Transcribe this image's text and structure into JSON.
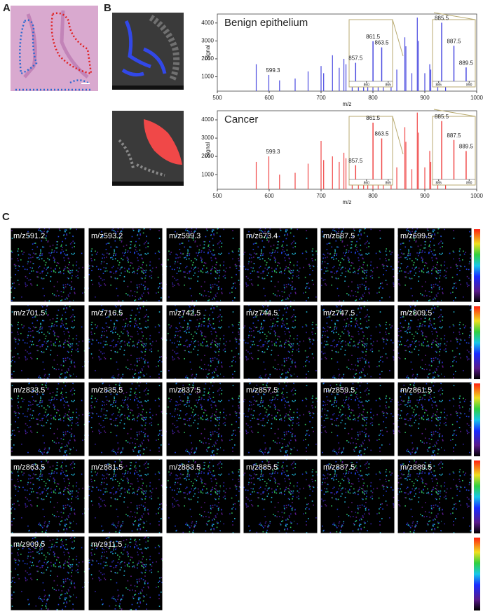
{
  "panel_labels": [
    "A",
    "B",
    "C"
  ],
  "spectra": [
    {
      "title": "Benign epithelium",
      "color": "#4a4ae0",
      "xlabel": "m/z",
      "ylabel": "Signal",
      "xlim": [
        500,
        1000
      ],
      "xticks": [
        500,
        600,
        700,
        800,
        900,
        1000
      ],
      "ylim": [
        200,
        4500
      ],
      "yticks": [
        1000,
        2000,
        3000,
        4000
      ],
      "x": [
        575,
        599.3,
        620,
        650,
        675,
        700,
        705,
        722,
        735,
        744,
        748,
        760,
        772,
        782,
        790,
        800,
        810,
        820,
        835,
        846,
        861.5,
        863.5,
        875,
        885.5,
        887.5,
        900,
        909.5,
        911.5,
        925,
        940
      ],
      "values": [
        1700,
        1100,
        800,
        900,
        1300,
        1600,
        1200,
        2200,
        1500,
        2000,
        1700,
        1500,
        1300,
        1200,
        1400,
        1100,
        1800,
        1300,
        2300,
        1400,
        3200,
        2700,
        1200,
        4300,
        3000,
        1200,
        1700,
        1400,
        800,
        700
      ],
      "peak_labels": [
        {
          "x": 599.3,
          "y": 1100
        }
      ],
      "insets": [
        {
          "xlim": [
            856,
            866
          ],
          "xticks": [
            860,
            865
          ],
          "ylim": [
            0,
            4000
          ],
          "peaks": [
            {
              "x": 857.5,
              "y": 1200
            },
            {
              "x": 861.5,
              "y": 2600
            },
            {
              "x": 863.5,
              "y": 2200
            }
          ]
        },
        {
          "xlim": [
            884,
            891
          ],
          "xticks": [
            885,
            890
          ],
          "ylim": [
            0,
            4000
          ],
          "peaks": [
            {
              "x": 885.5,
              "y": 3800
            },
            {
              "x": 887.5,
              "y": 2300
            },
            {
              "x": 889.5,
              "y": 900
            }
          ]
        }
      ]
    },
    {
      "title": "Cancer",
      "color": "#f04848",
      "xlabel": "m/z",
      "ylabel": "Signal",
      "xlim": [
        500,
        1000
      ],
      "xticks": [
        500,
        600,
        700,
        800,
        900,
        1000
      ],
      "ylim": [
        200,
        4500
      ],
      "yticks": [
        1000,
        2000,
        3000,
        4000
      ],
      "x": [
        575,
        599.3,
        620,
        650,
        675,
        700,
        705,
        722,
        735,
        744,
        748,
        760,
        772,
        782,
        790,
        800,
        810,
        820,
        835,
        846,
        861.5,
        863.5,
        875,
        885.5,
        887.5,
        900,
        909.5,
        911.5,
        925,
        940
      ],
      "values": [
        1700,
        2000,
        1000,
        1100,
        1600,
        2850,
        1800,
        2000,
        1700,
        2200,
        1900,
        1500,
        1300,
        1400,
        1200,
        1100,
        1600,
        1200,
        2400,
        1400,
        3600,
        2800,
        1300,
        4400,
        3300,
        1400,
        2300,
        1700,
        900,
        800
      ],
      "peak_labels": [
        {
          "x": 599.3,
          "y": 2000
        }
      ],
      "insets": [
        {
          "xlim": [
            856,
            866
          ],
          "xticks": [
            860,
            865
          ],
          "ylim": [
            0,
            4000
          ],
          "peaks": [
            {
              "x": 857.5,
              "y": 900
            },
            {
              "x": 861.5,
              "y": 3600
            },
            {
              "x": 863.5,
              "y": 2600
            }
          ]
        },
        {
          "xlim": [
            884,
            891
          ],
          "xticks": [
            885,
            890
          ],
          "ylim": [
            0,
            4000
          ],
          "peaks": [
            {
              "x": 885.5,
              "y": 3700
            },
            {
              "x": 887.5,
              "y": 2500
            },
            {
              "x": 889.5,
              "y": 1800
            }
          ]
        }
      ]
    }
  ],
  "ion_images": [
    "m/z591.2",
    "m/z593.2",
    "m/z599.3",
    "m/z673.4",
    "m/z687.5",
    "m/z699.5",
    "m/z701.5",
    "m/z716.5",
    "m/z742.5",
    "m/z744.5",
    "m/z747.5",
    "m/z809.5",
    "m/z833.5",
    "m/z835.5",
    "m/z837.5",
    "m/z857.5",
    "m/z859.5",
    "m/z861.5",
    "m/z863.5",
    "m/z881.5",
    "m/z883.5",
    "m/z885.5",
    "m/z887.5",
    "m/z889.5",
    "m/z909.5",
    "m/z911.5"
  ]
}
